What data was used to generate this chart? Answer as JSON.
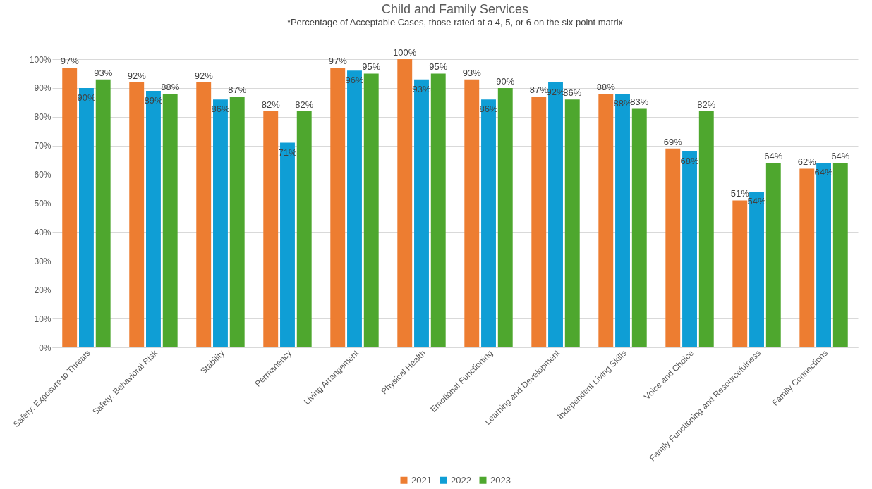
{
  "chart_data": {
    "type": "bar",
    "title": "Child and Family Services",
    "subtitle": "*Percentage of Acceptable Cases, those rated at a 4, 5, or 6 on the six point matrix",
    "categories": [
      "Safety: Exposure to Threats",
      "Safety: Behavioral Risk",
      "Stability",
      "Permanency",
      "Living Arrangement",
      "Physical Health",
      "Emotional Functioning",
      "Learning and Development",
      "Independent Living Skills",
      "Voice and Choice",
      "Family Functioning and Resourcefulness",
      "Family Connections"
    ],
    "series": [
      {
        "name": "2021",
        "color": "#ed7d31",
        "values": [
          97,
          92,
          92,
          82,
          97,
          100,
          93,
          87,
          88,
          69,
          51,
          62
        ],
        "value_labels": [
          "97%",
          "92%",
          "92%",
          "82%",
          "97%",
          "100%",
          "93%",
          "87%",
          "88%",
          "69%",
          "51%",
          "62%"
        ]
      },
      {
        "name": "2022",
        "color": "#0f9ed5",
        "values": [
          90,
          89,
          86,
          71,
          96,
          93,
          86,
          92,
          88,
          68,
          54,
          64
        ],
        "value_labels": [
          "90%",
          "89%",
          "86%",
          "71%",
          "96%",
          "93%",
          "86%",
          "92%",
          "88%",
          "68%",
          "54%",
          "64%"
        ]
      },
      {
        "name": "2023",
        "color": "#4ea72e",
        "values": [
          93,
          88,
          87,
          82,
          95,
          95,
          90,
          86,
          83,
          82,
          64,
          64
        ],
        "value_labels": [
          "93%",
          "88%",
          "87%",
          "82%",
          "95%",
          "95%",
          "90%",
          "86%",
          "83%",
          "82%",
          "64%",
          "64%"
        ]
      }
    ],
    "ylim": [
      0,
      100
    ],
    "yticks": [
      {
        "value": 0,
        "label": "0%"
      },
      {
        "value": 10,
        "label": "10%"
      },
      {
        "value": 20,
        "label": "20%"
      },
      {
        "value": 30,
        "label": "30%"
      },
      {
        "value": 40,
        "label": "40%"
      },
      {
        "value": 50,
        "label": "50%"
      },
      {
        "value": 60,
        "label": "60%"
      },
      {
        "value": 70,
        "label": "70%"
      },
      {
        "value": 80,
        "label": "80%"
      },
      {
        "value": 90,
        "label": "90%"
      },
      {
        "value": 100,
        "label": "100%"
      }
    ],
    "grid": "y",
    "legend": "bottom"
  }
}
